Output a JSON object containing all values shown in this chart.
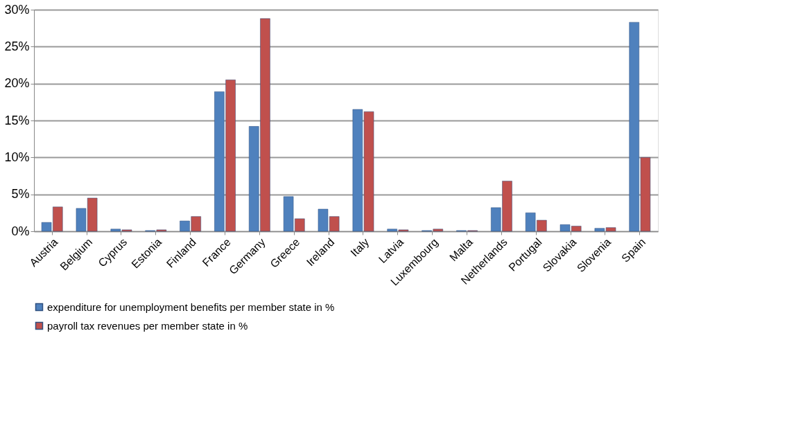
{
  "chart_data": {
    "type": "bar",
    "categories": [
      "Austria",
      "Belgium",
      "Cyprus",
      "Estonia",
      "Finland",
      "France",
      "Germany",
      "Greece",
      "Ireland",
      "Italy",
      "Latvia",
      "Luxembourg",
      "Malta",
      "Netherlands",
      "Portugal",
      "Slovakia",
      "Slovenia",
      "Spain"
    ],
    "series": [
      {
        "name": "expenditure for unemployment benefits per member state in %",
        "color": "#4f81bd",
        "values": [
          1.2,
          3.1,
          0.3,
          0.1,
          1.4,
          18.9,
          14.2,
          4.7,
          3.0,
          16.5,
          0.3,
          0.1,
          0.1,
          3.2,
          2.5,
          0.9,
          0.4,
          28.3
        ]
      },
      {
        "name": "payroll tax revenues per member state in %",
        "color": "#c0504d",
        "values": [
          3.3,
          4.5,
          0.2,
          0.2,
          2.0,
          20.5,
          28.8,
          1.7,
          2.0,
          16.2,
          0.2,
          0.3,
          0.1,
          6.8,
          1.5,
          0.7,
          0.5,
          10.0
        ]
      }
    ],
    "ylim": [
      0,
      30
    ],
    "yticks": [
      {
        "value": 0,
        "label": "0%"
      },
      {
        "value": 5,
        "label": "5%"
      },
      {
        "value": 10,
        "label": "10%"
      },
      {
        "value": 15,
        "label": "15%"
      },
      {
        "value": 20,
        "label": "20%"
      },
      {
        "value": 25,
        "label": "25%"
      },
      {
        "value": 30,
        "label": "30%"
      }
    ],
    "grid": "y",
    "legend": "bottom"
  }
}
